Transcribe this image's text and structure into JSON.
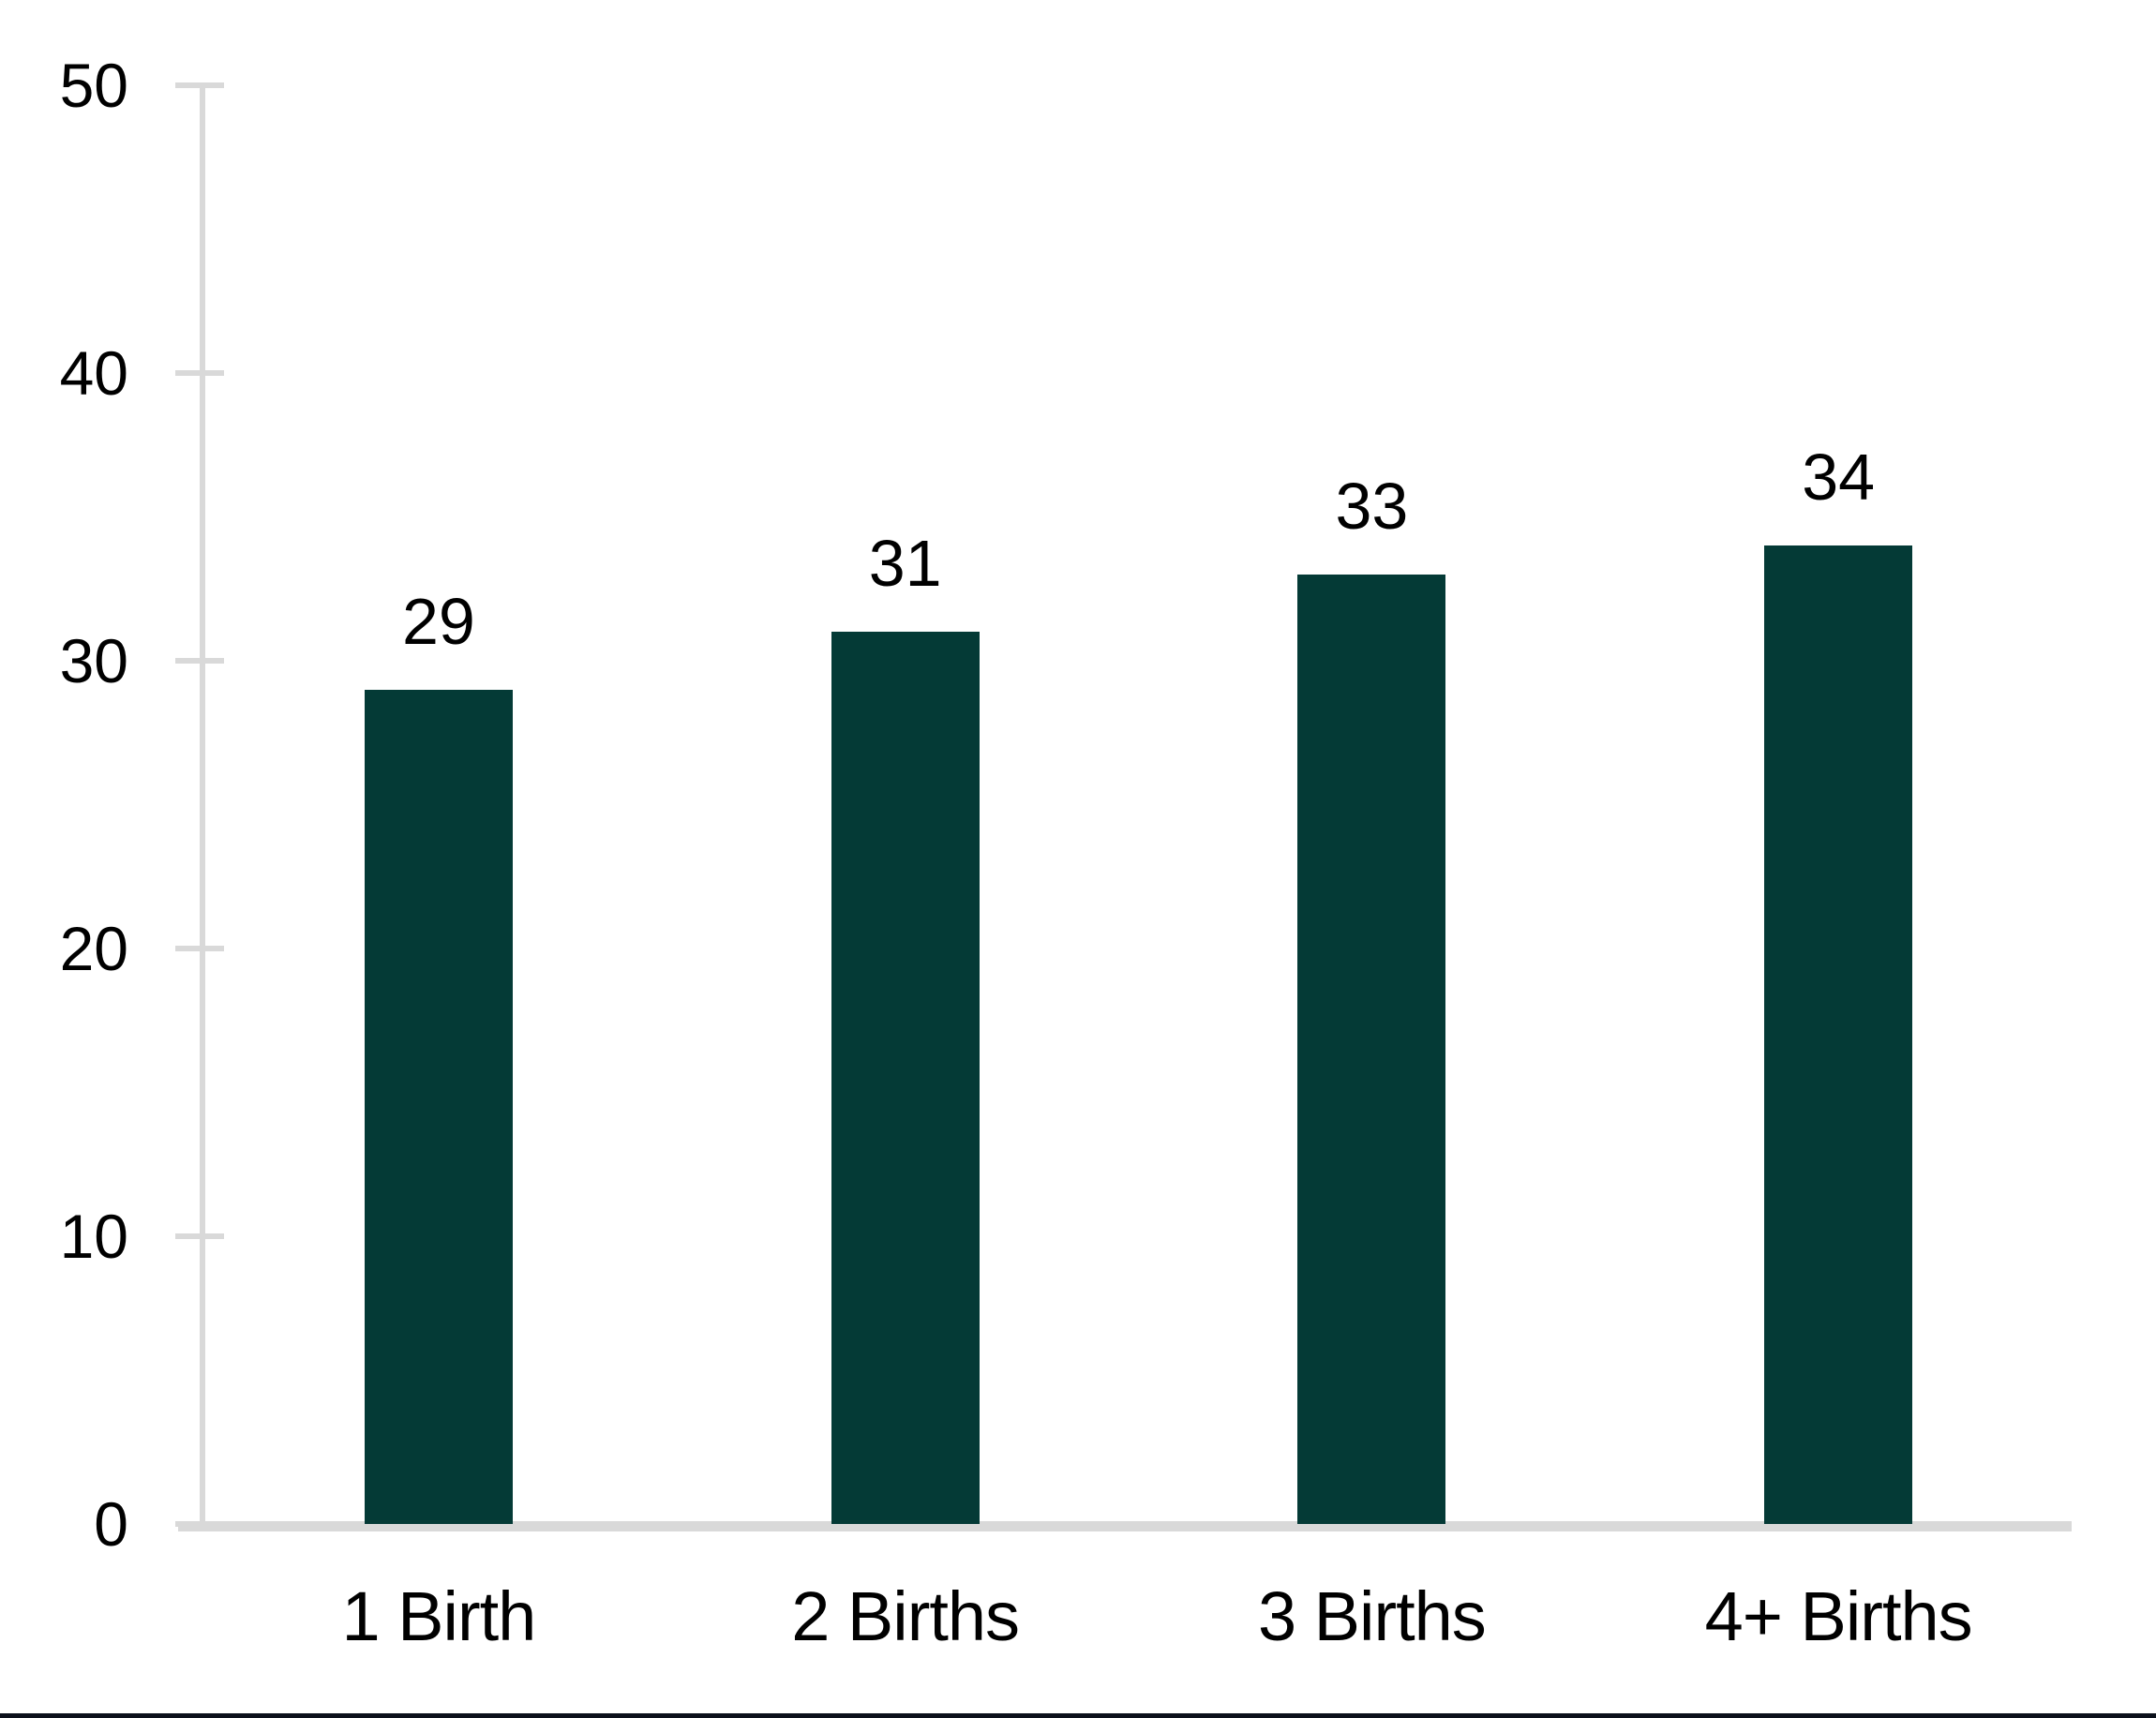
{
  "chart_data": {
    "type": "bar",
    "title": "",
    "xlabel": "",
    "ylabel": "",
    "categories": [
      "1 Birth",
      "2 Births",
      "3 Births",
      "4+ Births"
    ],
    "values": [
      29,
      31,
      33,
      34
    ],
    "data_labels": [
      "29",
      "31",
      "33",
      "34"
    ],
    "ylim": [
      0,
      50
    ],
    "yticks": [
      0,
      10,
      20,
      30,
      40,
      50
    ],
    "ytick_labels": [
      "0",
      "10",
      "20",
      "30",
      "40",
      "50"
    ],
    "grid": "off",
    "legend": "none",
    "bar_color": "#043A36",
    "axis_color": "#D9D9D9",
    "label_color": "#000000"
  },
  "page": {
    "bottom_strip_color": "#0B101B"
  }
}
